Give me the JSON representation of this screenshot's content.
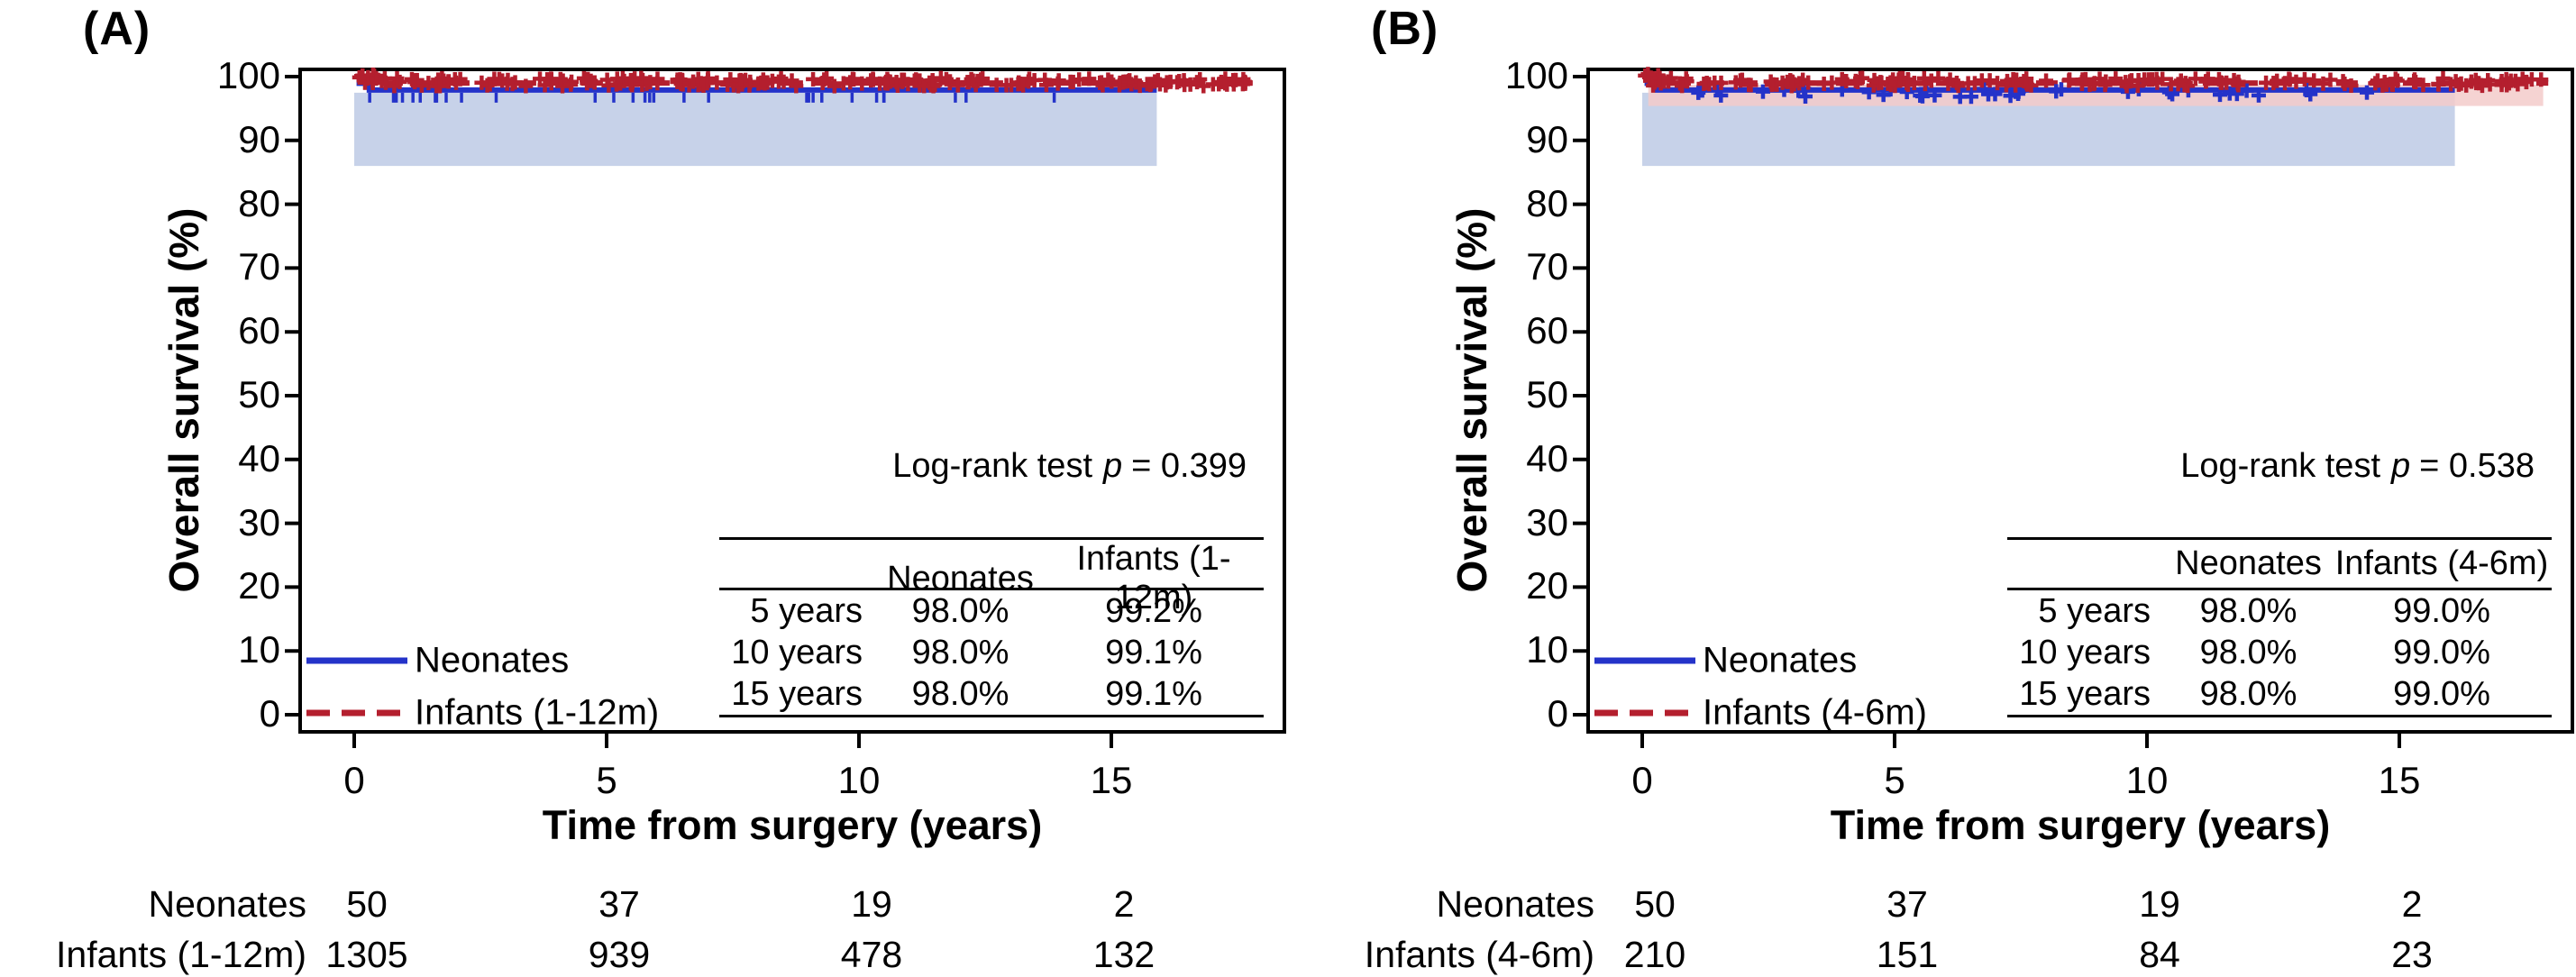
{
  "figure": {
    "panels": [
      {
        "label": "(A)",
        "ylabel": "Overall survival (%)",
        "xlabel": "Time from surgery (years)",
        "logrank": {
          "prefix": "Log-rank test",
          "p": "p",
          "value": "= 0.399"
        },
        "legend": [
          {
            "name": "Neonates"
          },
          {
            "name": "Infants (1-12m)"
          }
        ],
        "surv_table": {
          "col_headers": [
            "Neonates",
            "Infants (1-12m)"
          ],
          "rows": [
            {
              "period": "5 years",
              "neonates": "98.0%",
              "infants": "99.2%"
            },
            {
              "period": "10 years",
              "neonates": "98.0%",
              "infants": "99.1%"
            },
            {
              "period": "15 years",
              "neonates": "98.0%",
              "infants": "99.1%"
            }
          ]
        },
        "risk_table": {
          "rows": [
            {
              "label": "Neonates",
              "values": [
                "50",
                "37",
                "19",
                "2"
              ]
            },
            {
              "label": "Infants (1-12m)",
              "values": [
                "1305",
                "939",
                "478",
                "132"
              ]
            }
          ]
        }
      },
      {
        "label": "(B)",
        "ylabel": "Overall survival (%)",
        "xlabel": "Time from surgery (years)",
        "logrank": {
          "prefix": "Log-rank test",
          "p": "p",
          "value": "= 0.538"
        },
        "legend": [
          {
            "name": "Neonates"
          },
          {
            "name": "Infants (4-6m)"
          }
        ],
        "surv_table": {
          "col_headers": [
            "Neonates",
            "Infants (4-6m)"
          ],
          "rows": [
            {
              "period": "5 years",
              "neonates": "98.0%",
              "infants": "99.0%"
            },
            {
              "period": "10 years",
              "neonates": "98.0%",
              "infants": "99.0%"
            },
            {
              "period": "15 years",
              "neonates": "98.0%",
              "infants": "99.0%"
            }
          ]
        },
        "risk_table": {
          "rows": [
            {
              "label": "Neonates",
              "values": [
                "50",
                "37",
                "19",
                "2"
              ]
            },
            {
              "label": "Infants (4-6m)",
              "values": [
                "210",
                "151",
                "84",
                "23"
              ]
            }
          ]
        }
      }
    ]
  },
  "chart_data": [
    {
      "type": "line",
      "subtype": "kaplan-meier-survival",
      "panel_label": "(A)",
      "xlabel": "Time from surgery (years)",
      "ylabel": "Overall survival (%)",
      "xlim": [
        -1.05,
        18.4
      ],
      "ylim": [
        -2.7,
        101.2
      ],
      "xticks": [
        0,
        5,
        10,
        15
      ],
      "yticks": [
        0,
        10,
        20,
        30,
        40,
        50,
        60,
        70,
        80,
        90,
        100
      ],
      "grid": false,
      "annotation": "Log-rank test p = 0.399",
      "legend_position": "lower-left-inside",
      "series": [
        {
          "name": "Neonates",
          "color": "#2433c9",
          "line_style": "solid",
          "start": {
            "x": 0,
            "y": 100
          },
          "plateau_y": 97.9,
          "end_x": 15.9,
          "ci_lower_y": 86,
          "ci_end_x": 15.9,
          "ci_color": "#c7d2e9",
          "censor_marker": "tick",
          "censor_count": 30,
          "seed": 13,
          "survival": [
            {
              "t": 5,
              "v": 98.0
            },
            {
              "t": 10,
              "v": 98.0
            },
            {
              "t": 15,
              "v": 98.0
            }
          ]
        },
        {
          "name": "Infants (1-12m)",
          "color": "#b41f2e",
          "line_style": "dashed",
          "start": {
            "x": 0,
            "y": 100
          },
          "plateau_y": 99.0,
          "end_x": 17.8,
          "ci_lower_y": null,
          "ci_end_x": null,
          "ci_color": null,
          "censor_marker": "plus",
          "censor_count": 235,
          "seed": 29,
          "survival": [
            {
              "t": 5,
              "v": 99.2
            },
            {
              "t": 10,
              "v": 99.1
            },
            {
              "t": 15,
              "v": 99.1
            }
          ]
        }
      ],
      "n_at_risk": {
        "times": [
          0,
          5,
          10,
          15
        ],
        "rows": [
          {
            "name": "Neonates",
            "counts": [
              50,
              37,
              19,
              2
            ]
          },
          {
            "name": "Infants (1-12m)",
            "counts": [
              1305,
              939,
              478,
              132
            ]
          }
        ]
      }
    },
    {
      "type": "line",
      "subtype": "kaplan-meier-survival",
      "panel_label": "(B)",
      "xlabel": "Time from surgery (years)",
      "ylabel": "Overall survival (%)",
      "xlim": [
        -1.05,
        18.4
      ],
      "ylim": [
        -2.7,
        101.2
      ],
      "xticks": [
        0,
        5,
        10,
        15
      ],
      "yticks": [
        0,
        10,
        20,
        30,
        40,
        50,
        60,
        70,
        80,
        90,
        100
      ],
      "grid": false,
      "annotation": "Log-rank test p = 0.538",
      "legend_position": "lower-left-inside",
      "series": [
        {
          "name": "Neonates",
          "color": "#2433c9",
          "line_style": "solid",
          "start": {
            "x": 0,
            "y": 100
          },
          "plateau_y": 97.9,
          "end_x": 16.1,
          "ci_lower_y": 86,
          "ci_end_x": 16.1,
          "ci_color": "#c7d2e9",
          "censor_marker": "plus",
          "censor_count": 42,
          "seed": 55,
          "survival": [
            {
              "t": 5,
              "v": 98.0
            },
            {
              "t": 10,
              "v": 98.0
            },
            {
              "t": 15,
              "v": 98.0
            }
          ]
        },
        {
          "name": "Infants (4-6m)",
          "color": "#b41f2e",
          "line_style": "dashed",
          "start": {
            "x": 0,
            "y": 100
          },
          "plateau_y": 99.0,
          "end_x": 17.95,
          "ci_lower_y": 95.4,
          "ci_end_x": 17.85,
          "ci_color": "#f3cbca",
          "censor_marker": "plus",
          "censor_count": 185,
          "seed": 41,
          "survival": [
            {
              "t": 5,
              "v": 99.0
            },
            {
              "t": 10,
              "v": 99.0
            },
            {
              "t": 15,
              "v": 99.0
            }
          ]
        }
      ],
      "n_at_risk": {
        "times": [
          0,
          5,
          10,
          15
        ],
        "rows": [
          {
            "name": "Neonates",
            "counts": [
              50,
              37,
              19,
              2
            ]
          },
          {
            "name": "Infants (4-6m)",
            "counts": [
              210,
              151,
              84,
              23
            ]
          }
        ]
      }
    }
  ]
}
